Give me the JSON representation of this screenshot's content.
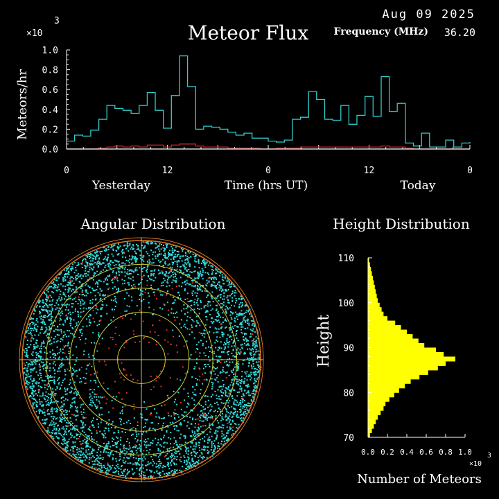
{
  "header": {
    "date": "Aug 09 2025",
    "title": "Meteor Flux",
    "frequency_label": "Frequency (MHz)",
    "frequency_value": "36.20",
    "multiplier": "×10",
    "multiplier_exp": "3"
  },
  "sections": {
    "angular_title": "Angular Distribution",
    "height_title": "Height Distribution"
  },
  "colors": {
    "flux_line": "#33cccc",
    "baseline_line": "#cc2222",
    "height_bars": "#ffff00",
    "angular_points": "#33dddd",
    "angular_red": "#dd3322",
    "rings": "#cccc33",
    "outer_ring": "#dd7722",
    "axis": "#ffffff"
  },
  "chart_data": [
    {
      "type": "line",
      "title": "Meteor Flux",
      "xlabel": "Time (hrs UT)",
      "ylabel": "Meteors/hr",
      "y_multiplier": "×10 3",
      "x_tick_labels": [
        "0",
        "12",
        "0",
        "12",
        "0"
      ],
      "x_day_labels": [
        "Yesterday",
        "Today"
      ],
      "y_tick_labels": [
        "0.0",
        "0.2",
        "0.4",
        "0.6",
        "0.8",
        "1.0"
      ],
      "ylim": [
        0,
        1.0
      ],
      "xlim": [
        0,
        48
      ],
      "series": [
        {
          "values": [
            0.08,
            0.14,
            0.13,
            0.19,
            0.3,
            0.44,
            0.41,
            0.39,
            0.36,
            0.44,
            0.57,
            0.39,
            0.21,
            0.54,
            0.94,
            0.63,
            0.2,
            0.23,
            0.22,
            0.2,
            0.17,
            0.14,
            0.16,
            0.11,
            0.11,
            0.08,
            0.07,
            0.09,
            0.3,
            0.32,
            0.58,
            0.5,
            0.3,
            0.29,
            0.44,
            0.25,
            0.34,
            0.53,
            0.33,
            0.73,
            0.38,
            0.46,
            0.06,
            0.03,
            0.16,
            0.02,
            0.02,
            0.09,
            0.02,
            0.06,
            0.07
          ]
        },
        {
          "values": [
            0.0,
            0.0,
            0.0,
            0.0,
            0.01,
            0.02,
            0.03,
            0.02,
            0.03,
            0.02,
            0.04,
            0.04,
            0.02,
            0.04,
            0.05,
            0.05,
            0.03,
            0.02,
            0.02,
            0.02,
            0.01,
            0.01,
            0.01,
            0.01,
            0.0,
            0.0,
            0.01,
            0.01,
            0.01,
            0.02,
            0.02,
            0.02,
            0.02,
            0.02,
            0.02,
            0.02,
            0.02,
            0.02,
            0.02,
            0.03,
            0.02,
            0.02,
            0.01,
            0.0,
            0.0,
            0.0,
            0.0,
            0.0,
            0.0,
            0.0,
            0.0
          ]
        }
      ]
    },
    {
      "type": "scatter",
      "title": "Angular Distribution",
      "rings": 5,
      "point_density": "dense cyan outer ring, sparse center, scattered red points"
    },
    {
      "type": "bar",
      "orientation": "horizontal",
      "title": "Height Distribution",
      "xlabel": "Number of Meteors",
      "ylabel": "Height",
      "x_multiplier": "×10 3",
      "x_tick_labels": [
        "0.0",
        "0.2",
        "0.4",
        "0.6",
        "0.8",
        "1.0"
      ],
      "y_tick_labels": [
        "70",
        "80",
        "90",
        "100",
        "110"
      ],
      "xlim": [
        0,
        1.0
      ],
      "ylim": [
        70,
        110
      ],
      "heights": [
        70,
        71,
        72,
        73,
        74,
        75,
        76,
        77,
        78,
        79,
        80,
        81,
        82,
        83,
        84,
        85,
        86,
        87,
        88,
        89,
        90,
        91,
        92,
        93,
        94,
        95,
        96,
        97,
        98,
        99,
        100,
        101,
        102,
        103,
        104,
        105,
        106,
        107,
        108,
        109,
        110
      ],
      "values": [
        0.02,
        0.04,
        0.06,
        0.08,
        0.1,
        0.13,
        0.16,
        0.18,
        0.22,
        0.27,
        0.32,
        0.38,
        0.44,
        0.53,
        0.62,
        0.72,
        0.8,
        0.9,
        0.78,
        0.7,
        0.58,
        0.52,
        0.46,
        0.4,
        0.34,
        0.28,
        0.2,
        0.16,
        0.14,
        0.12,
        0.1,
        0.09,
        0.08,
        0.07,
        0.06,
        0.05,
        0.04,
        0.03,
        0.02,
        0.01,
        0.0
      ]
    }
  ]
}
